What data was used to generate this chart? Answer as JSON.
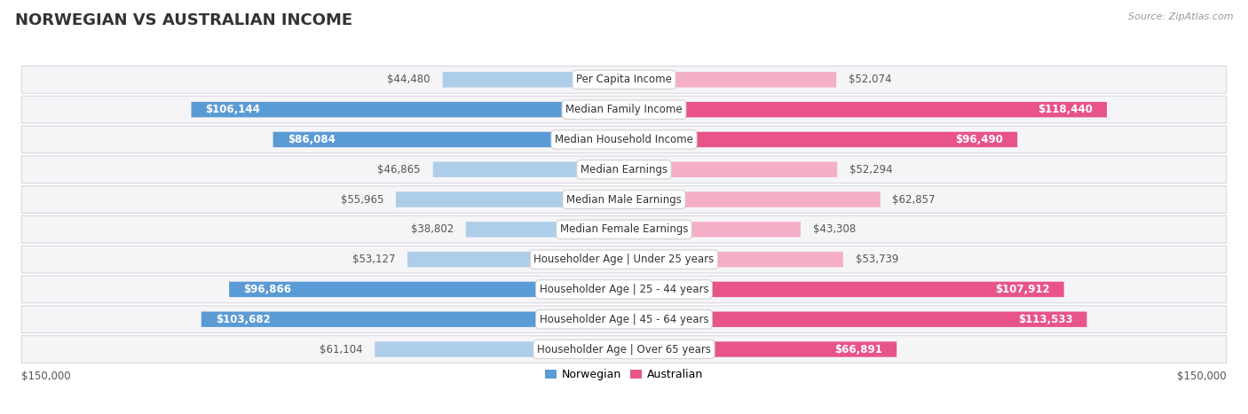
{
  "title": "NORWEGIAN VS AUSTRALIAN INCOME",
  "source": "Source: ZipAtlas.com",
  "categories": [
    "Per Capita Income",
    "Median Family Income",
    "Median Household Income",
    "Median Earnings",
    "Median Male Earnings",
    "Median Female Earnings",
    "Householder Age | Under 25 years",
    "Householder Age | 25 - 44 years",
    "Householder Age | 45 - 64 years",
    "Householder Age | Over 65 years"
  ],
  "norwegian_values": [
    44480,
    106144,
    86084,
    46865,
    55965,
    38802,
    53127,
    96866,
    103682,
    61104
  ],
  "australian_values": [
    52074,
    118440,
    96490,
    52294,
    62857,
    43308,
    53739,
    107912,
    113533,
    66891
  ],
  "norwegian_labels": [
    "$44,480",
    "$106,144",
    "$86,084",
    "$46,865",
    "$55,965",
    "$38,802",
    "$53,127",
    "$96,866",
    "$103,682",
    "$61,104"
  ],
  "australian_labels": [
    "$52,074",
    "$118,440",
    "$96,490",
    "$52,294",
    "$62,857",
    "$43,308",
    "$53,739",
    "$107,912",
    "$113,533",
    "$66,891"
  ],
  "max_value": 150000,
  "norwegian_color_light": "#aecde8",
  "norwegian_color_dark": "#5b9bd5",
  "australian_color_light": "#f4aec8",
  "australian_color_dark": "#e8538a",
  "background_color": "#ffffff",
  "row_bg_color": "#f5f5f8",
  "row_border_color": "#d8d8e0",
  "title_fontsize": 13,
  "label_fontsize": 8.5,
  "value_fontsize": 8.5,
  "legend_fontsize": 9,
  "inside_threshold": 65000
}
